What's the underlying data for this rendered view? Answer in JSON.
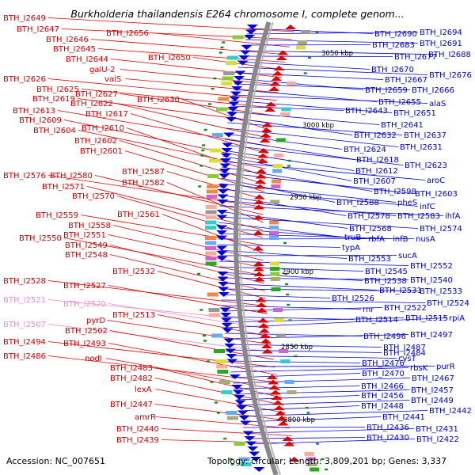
{
  "title": "Burkholderia thailandensis E264 chromosome I, complete genom...",
  "footer": {
    "accession": "Accession: NC_007651",
    "topology": "Topology: circular; Length: 3,809,201 bp; Genes: 3,337"
  },
  "colors": {
    "forward_strand": "#e00000",
    "reverse_strand": "#0000e0",
    "pseudo_label": "#f08cc8",
    "backbone": "#888888"
  },
  "scale_ticks": [
    "3050 kbp",
    "3000 kbp",
    "2950 kbp",
    "2900 kbp",
    "2850 kbp",
    "2800 kbp"
  ],
  "left_labels": [
    {
      "text": "BTH_I2649",
      "pseudo": false
    },
    {
      "text": "BTH_I2647",
      "pseudo": false
    },
    {
      "text": "BTH_I2656",
      "pseudo": false
    },
    {
      "text": "BTH_I2646",
      "pseudo": false
    },
    {
      "text": "BTH_I2645",
      "pseudo": false
    },
    {
      "text": "BTH_I2650",
      "pseudo": false
    },
    {
      "text": "BTH_I2644",
      "pseudo": false
    },
    {
      "text": "galU-2",
      "pseudo": false
    },
    {
      "text": "valS",
      "pseudo": false
    },
    {
      "text": "BTH_I2626",
      "pseudo": false
    },
    {
      "text": "BTH_I2625",
      "pseudo": false
    },
    {
      "text": "BTH_I2627",
      "pseudo": false
    },
    {
      "text": "BTH_I2619",
      "pseudo": false
    },
    {
      "text": "BTH_I2630",
      "pseudo": false
    },
    {
      "text": "BTH_I2622",
      "pseudo": false
    },
    {
      "text": "BTH_I2613",
      "pseudo": false
    },
    {
      "text": "BTH_I2617",
      "pseudo": false
    },
    {
      "text": "BTH_I2609",
      "pseudo": false
    },
    {
      "text": "BTH_I2604",
      "pseudo": false
    },
    {
      "text": "BTH_I2610",
      "pseudo": false
    },
    {
      "text": "BTH_I2602",
      "pseudo": false
    },
    {
      "text": "BTH_I2601",
      "pseudo": false
    },
    {
      "text": "BTH_I2587",
      "pseudo": false
    },
    {
      "text": "BTH_I2576",
      "pseudo": false
    },
    {
      "text": "BTH_I2580",
      "pseudo": false
    },
    {
      "text": "BTH_I2582",
      "pseudo": false
    },
    {
      "text": "BTH_I2571",
      "pseudo": false
    },
    {
      "text": "BTH_I2570",
      "pseudo": false
    },
    {
      "text": "BTH_I2559",
      "pseudo": false
    },
    {
      "text": "BTH_I2561",
      "pseudo": false
    },
    {
      "text": "BTH_I2558",
      "pseudo": false
    },
    {
      "text": "BTH_I2551",
      "pseudo": false
    },
    {
      "text": "BTH_I2550",
      "pseudo": false
    },
    {
      "text": "BTH_I2549",
      "pseudo": false
    },
    {
      "text": "BTH_I2548",
      "pseudo": false
    },
    {
      "text": "BTH_I2532",
      "pseudo": false
    },
    {
      "text": "BTH_I2528",
      "pseudo": false
    },
    {
      "text": "BTH_I2527",
      "pseudo": false
    },
    {
      "text": "BTH_I2521",
      "pseudo": true
    },
    {
      "text": "BTH_I2520",
      "pseudo": true
    },
    {
      "text": "BTH_I2513",
      "pseudo": false
    },
    {
      "text": "pyrD",
      "pseudo": false
    },
    {
      "text": "BTH_I2507",
      "pseudo": true
    },
    {
      "text": "BTH_I2502",
      "pseudo": false
    },
    {
      "text": "BTH_I2494",
      "pseudo": false
    },
    {
      "text": "BTH_I2493",
      "pseudo": false
    },
    {
      "text": "BTH_I2486",
      "pseudo": false
    },
    {
      "text": "nodI",
      "pseudo": false
    },
    {
      "text": "BTH_I2483",
      "pseudo": false
    },
    {
      "text": "BTH_I2482",
      "pseudo": false
    },
    {
      "text": "lexA",
      "pseudo": false
    },
    {
      "text": "BTH_I2447",
      "pseudo": false
    },
    {
      "text": "amrR",
      "pseudo": false
    },
    {
      "text": "BTH_I2440",
      "pseudo": false
    },
    {
      "text": "BTH_I2439",
      "pseudo": false
    }
  ],
  "right_labels": [
    {
      "text": "BTH_I2690"
    },
    {
      "text": "BTH_I2694"
    },
    {
      "text": "BTH_I2691"
    },
    {
      "text": "BTH_I2683"
    },
    {
      "text": "BTH_I2688"
    },
    {
      "text": "BTH_I2677"
    },
    {
      "text": "BTH_I2670"
    },
    {
      "text": "BTH_I2676"
    },
    {
      "text": "BTH_I2667"
    },
    {
      "text": "BTH_I2659"
    },
    {
      "text": "BTH_I2666"
    },
    {
      "text": "BTH_I2655"
    },
    {
      "text": "alaS"
    },
    {
      "text": "BTH_I2651"
    },
    {
      "text": "BTH_I2643"
    },
    {
      "text": "BTH_I2641"
    },
    {
      "text": "BTH_I2632"
    },
    {
      "text": "BTH_I2637"
    },
    {
      "text": "BTH_I2631"
    },
    {
      "text": "BTH_I2624"
    },
    {
      "text": "BTH_I2618"
    },
    {
      "text": "BTH_I2623"
    },
    {
      "text": "BTH_I2612"
    },
    {
      "text": "BTH_I2607"
    },
    {
      "text": "aroC"
    },
    {
      "text": "BTH_I2598"
    },
    {
      "text": "BTH_I2603"
    },
    {
      "text": "BTH_I2588"
    },
    {
      "text": "pheS"
    },
    {
      "text": "infC"
    },
    {
      "text": "BTH_I2578"
    },
    {
      "text": "BTH_I2583"
    },
    {
      "text": "ihfA"
    },
    {
      "text": "BTH_I2568"
    },
    {
      "text": "BTH_I2574"
    },
    {
      "text": "truB"
    },
    {
      "text": "rbfA"
    },
    {
      "text": "infB"
    },
    {
      "text": "nusA"
    },
    {
      "text": "typA"
    },
    {
      "text": "BTH_I2553"
    },
    {
      "text": "sucA"
    },
    {
      "text": "BTH_I2552"
    },
    {
      "text": "BTH_I2545"
    },
    {
      "text": "BTH_I2538"
    },
    {
      "text": "BTH_I2540"
    },
    {
      "text": "BTH_I2531"
    },
    {
      "text": "BTH_I2533"
    },
    {
      "text": "BTH_I2526"
    },
    {
      "text": "BTH_I2524"
    },
    {
      "text": "rnr"
    },
    {
      "text": "BTH_I2522"
    },
    {
      "text": "BTH_I2514"
    },
    {
      "text": "BTH_I2515"
    },
    {
      "text": "rpiA"
    },
    {
      "text": "BTH_I2496"
    },
    {
      "text": "BTH_I2497"
    },
    {
      "text": "BTH_I2487"
    },
    {
      "text": "BTH_I2484"
    },
    {
      "text": "cysT"
    },
    {
      "text": "BTH_I2476"
    },
    {
      "text": "purR"
    },
    {
      "text": "rbsK"
    },
    {
      "text": "BTH_I2470"
    },
    {
      "text": "BTH_I2467"
    },
    {
      "text": "BTH_I2466"
    },
    {
      "text": "BTH_I2457"
    },
    {
      "text": "BTH_I2456"
    },
    {
      "text": "BTH_I2449"
    },
    {
      "text": "BTH_I2448"
    },
    {
      "text": "BTH_I2442"
    },
    {
      "text": "BTH_I2441"
    },
    {
      "text": "BTH_I2436"
    },
    {
      "text": "BTH_I2431"
    },
    {
      "text": "BTH_I2430"
    },
    {
      "text": "BTH_I2422"
    }
  ]
}
